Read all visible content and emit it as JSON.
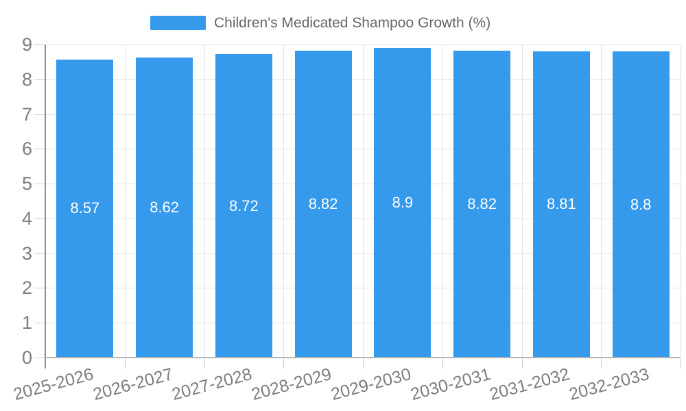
{
  "legend": {
    "label": "Children's Medicated Shampoo Growth (%)"
  },
  "chart_data": {
    "type": "bar",
    "title": "Children's Medicated Shampoo Growth (%)",
    "categories": [
      "2025-2026",
      "2026-2027",
      "2027-2028",
      "2028-2029",
      "2029-2030",
      "2030-2031",
      "2031-2032",
      "2032-2033"
    ],
    "values": [
      8.57,
      8.62,
      8.72,
      8.82,
      8.9,
      8.82,
      8.81,
      8.8
    ],
    "value_labels": [
      "8.57",
      "8.62",
      "8.72",
      "8.82",
      "8.9",
      "8.82",
      "8.81",
      "8.8"
    ],
    "xlabel": "",
    "ylabel": "",
    "ylim": [
      0,
      9
    ],
    "ytick_step": 1,
    "yticks": [
      0,
      1,
      2,
      3,
      4,
      5,
      6,
      7,
      8,
      9
    ],
    "grid": true,
    "legend_position": "top",
    "x_label_rotation_deg": -15,
    "colors": {
      "bar": "#3599ec",
      "value_label": "#ffffff",
      "grid_line": "#e3e3e3",
      "axis_line": "#8e8e8e",
      "bottom_axis_line": "#b3b3b3",
      "tick_mark": "#cccccc",
      "tick_label": "#7d7d7d",
      "legend_text": "#666666"
    }
  }
}
